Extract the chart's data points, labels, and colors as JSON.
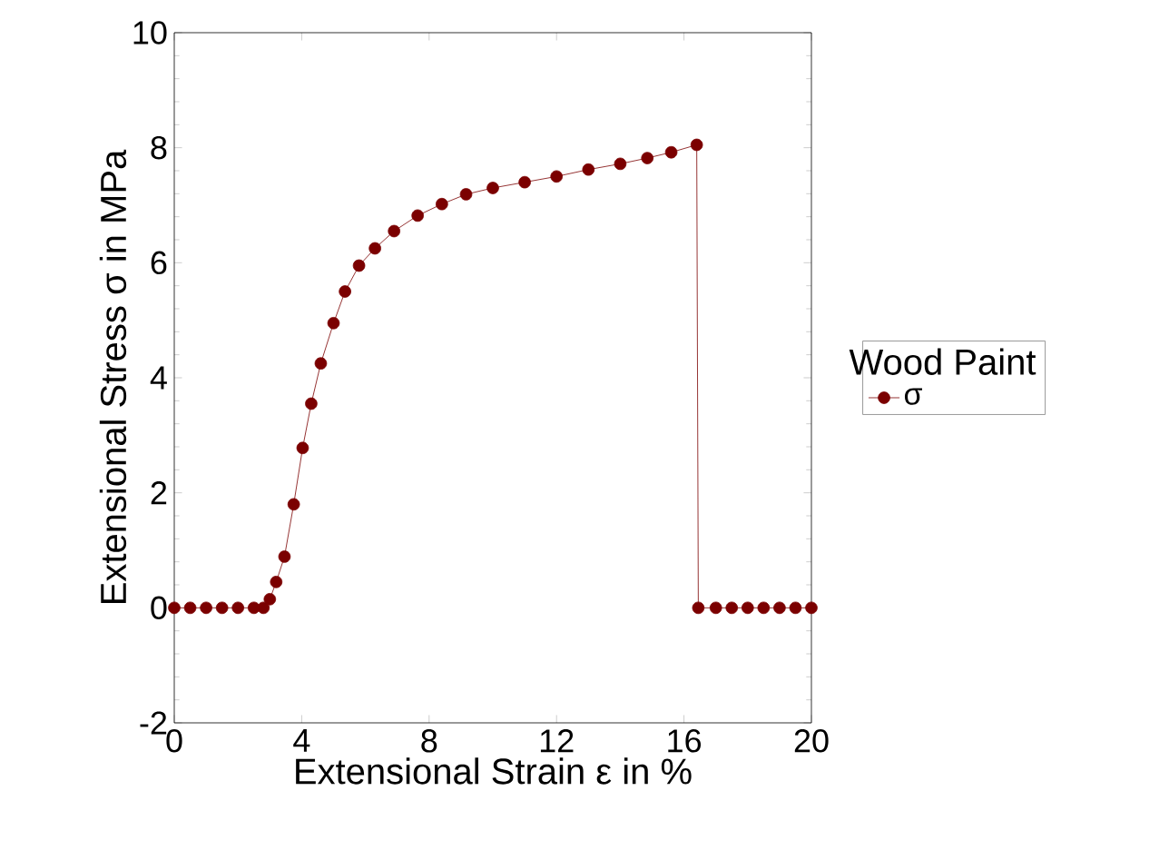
{
  "chart_data": {
    "type": "line",
    "xlabel": "Extensional Strain ε in %",
    "ylabel": "Extensional Stress σ in MPa",
    "legend_title": "Wood Paint",
    "x": [
      0,
      0.5,
      1,
      1.5,
      2,
      2.5,
      2.8,
      3.0,
      3.2,
      3.46,
      3.75,
      4.03,
      4.3,
      4.6,
      5.0,
      5.36,
      5.8,
      6.3,
      6.9,
      7.64,
      8.4,
      9.16,
      10,
      11,
      12,
      13,
      14,
      14.85,
      15.6,
      16.4,
      16.45,
      17,
      17.5,
      18,
      18.5,
      19,
      19.5,
      20
    ],
    "series": [
      {
        "name": "σ",
        "color": "#7b0000",
        "values": [
          0,
          0,
          0,
          0,
          0,
          0,
          0,
          0.15,
          0.45,
          0.89,
          1.8,
          2.78,
          3.55,
          4.25,
          4.95,
          5.5,
          5.95,
          6.25,
          6.55,
          6.82,
          7.02,
          7.19,
          7.3,
          7.4,
          7.5,
          7.62,
          7.72,
          7.82,
          7.92,
          8.05,
          0,
          0,
          0,
          0,
          0,
          0,
          0,
          0
        ]
      }
    ],
    "xlim": [
      0,
      20
    ],
    "ylim": [
      -2,
      10
    ],
    "xticks": [
      0,
      4,
      8,
      12,
      16,
      20
    ],
    "yticks": [
      -2,
      0,
      2,
      4,
      6,
      8,
      10
    ],
    "grid": false,
    "legend": "right",
    "marker": "circle",
    "line_style": "solid"
  }
}
